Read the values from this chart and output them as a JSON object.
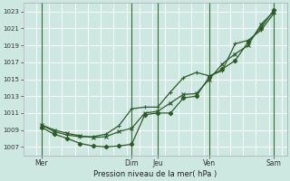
{
  "title": "",
  "xlabel": "Pression niveau de la mer( hPa )",
  "background_color": "#cce8e0",
  "plot_bg_color": "#cce8e0",
  "grid_color": "#ffffff",
  "line_color": "#2d5a27",
  "vline_color": "#3a6b30",
  "ylim": [
    1006.0,
    1024.0
  ],
  "yticks": [
    1007,
    1009,
    1011,
    1013,
    1015,
    1017,
    1019,
    1021,
    1023
  ],
  "day_labels": [
    "Mer",
    "Dim",
    "Jeu",
    "Ven",
    "Sam"
  ],
  "day_positions": [
    0.5,
    4.0,
    5.0,
    7.0,
    9.5
  ],
  "vline_positions": [
    0.5,
    4.0,
    5.0,
    7.0,
    9.5
  ],
  "xlim": [
    -0.2,
    10.0
  ],
  "line1_x": [
    0.5,
    1.0,
    1.5,
    2.0,
    2.5,
    3.0,
    3.5,
    4.0,
    4.5,
    5.0,
    5.5,
    6.0,
    6.5,
    7.0,
    7.5,
    8.0,
    8.5,
    9.0,
    9.5
  ],
  "line1_y": [
    1009.3,
    1008.5,
    1008.0,
    1007.4,
    1007.1,
    1007.0,
    1007.1,
    1007.3,
    1010.8,
    1011.0,
    1011.0,
    1012.8,
    1013.0,
    1015.3,
    1016.2,
    1017.2,
    1019.4,
    1021.1,
    1023.2
  ],
  "line2_x": [
    0.5,
    1.0,
    1.5,
    2.0,
    2.5,
    3.0,
    3.5,
    4.0,
    4.5,
    5.0,
    5.5,
    6.0,
    6.5,
    7.0,
    7.5,
    8.0,
    8.5,
    9.0,
    9.5
  ],
  "line2_y": [
    1009.6,
    1008.8,
    1008.4,
    1008.2,
    1008.2,
    1008.5,
    1009.5,
    1011.5,
    1011.7,
    1011.7,
    1013.5,
    1015.2,
    1015.8,
    1015.4,
    1016.0,
    1019.2,
    1019.6,
    1020.8,
    1022.8
  ],
  "line3_x": [
    0.5,
    1.0,
    1.5,
    2.0,
    2.5,
    3.0,
    3.5,
    4.0,
    4.5,
    5.0,
    5.5,
    6.0,
    6.5,
    7.0,
    7.5,
    8.0,
    8.5,
    9.0,
    9.5
  ],
  "line3_y": [
    1009.6,
    1009.0,
    1008.6,
    1008.3,
    1008.1,
    1008.2,
    1008.8,
    1009.2,
    1011.0,
    1011.2,
    1012.2,
    1013.2,
    1013.3,
    1015.0,
    1016.8,
    1018.0,
    1019.0,
    1021.5,
    1023.0
  ]
}
